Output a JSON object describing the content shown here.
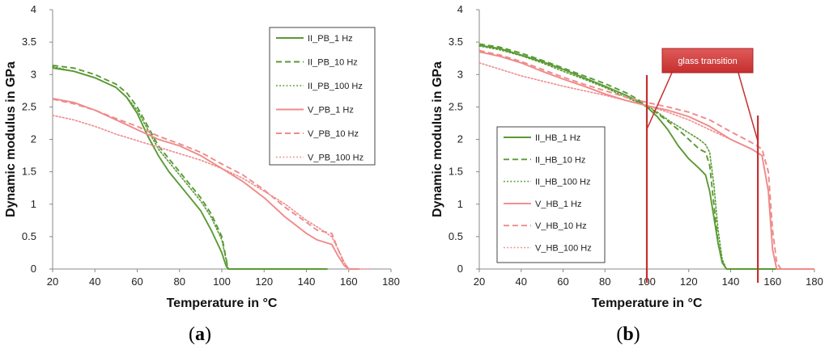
{
  "chart_data": [
    {
      "type": "line",
      "panel_label": "a",
      "xlabel": "Temperature in °C",
      "ylabel": "Dynamic modulus in GPa",
      "xlim": [
        20,
        180
      ],
      "ylim": [
        0,
        4
      ],
      "x_ticks": [
        "20",
        "40",
        "60",
        "80",
        "100",
        "120",
        "140",
        "160",
        "180"
      ],
      "y_ticks": [
        "0",
        "0.5",
        "1",
        "1.5",
        "2",
        "2.5",
        "3",
        "3.5",
        "4"
      ],
      "legend_position": "top-right",
      "series": [
        {
          "name": "II_PB_1 Hz",
          "color": "#5a9a34",
          "dash": "solid",
          "x": [
            20,
            30,
            40,
            50,
            55,
            60,
            65,
            70,
            75,
            80,
            85,
            90,
            95,
            100,
            102,
            103,
            110,
            120,
            130,
            140,
            150
          ],
          "y": [
            3.1,
            3.05,
            2.95,
            2.8,
            2.65,
            2.4,
            2.05,
            1.75,
            1.5,
            1.3,
            1.1,
            0.9,
            0.6,
            0.25,
            0.05,
            0,
            0,
            0,
            0,
            0,
            0
          ]
        },
        {
          "name": "II_PB_10 Hz",
          "color": "#5a9a34",
          "dash": "dashed",
          "x": [
            20,
            30,
            40,
            50,
            55,
            60,
            65,
            70,
            75,
            80,
            85,
            90,
            95,
            100,
            103
          ],
          "y": [
            3.14,
            3.1,
            3.0,
            2.85,
            2.72,
            2.5,
            2.2,
            1.9,
            1.7,
            1.5,
            1.3,
            1.1,
            0.85,
            0.5,
            0.0
          ]
        },
        {
          "name": "II_PB_100 Hz",
          "color": "#5a9a34",
          "dash": "dotted",
          "x": [
            20,
            30,
            40,
            50,
            55,
            60,
            65,
            70,
            75,
            80,
            85,
            90,
            95,
            100,
            103
          ],
          "y": [
            3.12,
            3.05,
            2.95,
            2.8,
            2.65,
            2.45,
            2.15,
            1.85,
            1.65,
            1.45,
            1.25,
            1.05,
            0.8,
            0.45,
            0.0
          ]
        },
        {
          "name": "V_PB_1 Hz",
          "color": "#f08a8a",
          "dash": "solid",
          "x": [
            20,
            30,
            40,
            50,
            60,
            70,
            80,
            90,
            100,
            110,
            120,
            130,
            140,
            145,
            152,
            155,
            158,
            160,
            165
          ],
          "y": [
            2.63,
            2.57,
            2.45,
            2.3,
            2.15,
            2.0,
            1.9,
            1.75,
            1.55,
            1.35,
            1.1,
            0.8,
            0.55,
            0.45,
            0.38,
            0.2,
            0.05,
            0,
            0
          ]
        },
        {
          "name": "V_PB_10 Hz",
          "color": "#f08a8a",
          "dash": "dashed",
          "x": [
            20,
            30,
            40,
            50,
            60,
            70,
            80,
            90,
            100,
            110,
            120,
            130,
            140,
            145,
            152,
            155,
            158,
            160
          ],
          "y": [
            2.62,
            2.55,
            2.45,
            2.32,
            2.2,
            2.05,
            1.93,
            1.8,
            1.62,
            1.45,
            1.22,
            0.95,
            0.72,
            0.6,
            0.55,
            0.3,
            0.08,
            0
          ]
        },
        {
          "name": "V_PB_100 Hz",
          "color": "#f08a8a",
          "dash": "dotted",
          "x": [
            20,
            30,
            40,
            50,
            60,
            70,
            80,
            90,
            100,
            110,
            120,
            130,
            140,
            145,
            152,
            155,
            158,
            160,
            165,
            170
          ],
          "y": [
            2.37,
            2.3,
            2.2,
            2.08,
            1.98,
            1.88,
            1.78,
            1.68,
            1.55,
            1.4,
            1.2,
            1.0,
            0.75,
            0.65,
            0.5,
            0.3,
            0.1,
            0,
            0,
            0
          ]
        }
      ]
    },
    {
      "type": "line",
      "panel_label": "b",
      "xlabel": "Temperature in °C",
      "ylabel": "Dynamic modulus in GPa",
      "xlim": [
        20,
        180
      ],
      "ylim": [
        0,
        4
      ],
      "x_ticks": [
        "20",
        "40",
        "60",
        "80",
        "100",
        "120",
        "140",
        "160",
        "180"
      ],
      "y_ticks": [
        "0",
        "0.5",
        "1",
        "1.5",
        "2",
        "2.5",
        "3",
        "3.5",
        "4"
      ],
      "legend_position": "bottom-left",
      "annotation": {
        "text": "glass transition",
        "marker_x": [
          100,
          153
        ]
      },
      "series": [
        {
          "name": "II_HB_1 Hz",
          "color": "#5a9a34",
          "dash": "solid",
          "x": [
            20,
            30,
            40,
            50,
            60,
            70,
            80,
            90,
            95,
            100,
            105,
            110,
            115,
            120,
            125,
            128,
            130,
            132,
            134,
            136,
            138,
            140,
            150,
            160,
            170,
            180
          ],
          "y": [
            3.45,
            3.4,
            3.3,
            3.2,
            3.08,
            2.95,
            2.82,
            2.68,
            2.6,
            2.5,
            2.35,
            2.15,
            1.9,
            1.7,
            1.55,
            1.45,
            1.2,
            0.8,
            0.4,
            0.1,
            0.0,
            0,
            0,
            0,
            0,
            0
          ]
        },
        {
          "name": "II_HB_10 Hz",
          "color": "#5a9a34",
          "dash": "dashed",
          "x": [
            20,
            30,
            40,
            50,
            60,
            70,
            80,
            90,
            95,
            100,
            105,
            110,
            115,
            120,
            125,
            128,
            130,
            132,
            134,
            136,
            138
          ],
          "y": [
            3.47,
            3.42,
            3.33,
            3.22,
            3.1,
            2.98,
            2.86,
            2.72,
            2.63,
            2.52,
            2.4,
            2.28,
            2.15,
            2.0,
            1.85,
            1.8,
            1.6,
            1.0,
            0.4,
            0.1,
            0.0
          ]
        },
        {
          "name": "II_HB_100 Hz",
          "color": "#5a9a34",
          "dash": "dotted",
          "x": [
            20,
            30,
            40,
            50,
            60,
            70,
            80,
            90,
            95,
            100,
            105,
            110,
            115,
            120,
            125,
            128,
            130,
            132,
            134,
            136,
            138
          ],
          "y": [
            3.44,
            3.38,
            3.29,
            3.18,
            3.05,
            2.93,
            2.8,
            2.65,
            2.58,
            2.52,
            2.42,
            2.3,
            2.2,
            2.1,
            2.0,
            1.92,
            1.8,
            1.3,
            0.6,
            0.15,
            0.0
          ]
        },
        {
          "name": "V_HB_1 Hz",
          "color": "#f08a8a",
          "dash": "solid",
          "x": [
            20,
            30,
            40,
            50,
            60,
            70,
            80,
            90,
            100,
            110,
            120,
            130,
            140,
            150,
            155,
            158,
            160,
            162,
            170,
            180
          ],
          "y": [
            3.35,
            3.28,
            3.18,
            3.05,
            2.93,
            2.82,
            2.7,
            2.6,
            2.52,
            2.45,
            2.35,
            2.2,
            2.0,
            1.85,
            1.75,
            1.2,
            0.3,
            0,
            0,
            0
          ]
        },
        {
          "name": "V_HB_10 Hz",
          "color": "#f08a8a",
          "dash": "dashed",
          "x": [
            20,
            30,
            40,
            50,
            60,
            70,
            80,
            90,
            100,
            110,
            120,
            130,
            140,
            150,
            155,
            158,
            160,
            162,
            164
          ],
          "y": [
            3.37,
            3.3,
            3.2,
            3.08,
            2.96,
            2.85,
            2.75,
            2.65,
            2.57,
            2.5,
            2.42,
            2.3,
            2.12,
            1.95,
            1.85,
            1.5,
            0.6,
            0.1,
            0
          ]
        },
        {
          "name": "V_HB_100 Hz",
          "color": "#f08a8a",
          "dash": "dotted",
          "x": [
            20,
            30,
            40,
            50,
            60,
            70,
            80,
            90,
            100,
            110,
            120,
            130,
            140,
            150,
            155,
            158,
            160,
            162
          ],
          "y": [
            3.18,
            3.08,
            2.98,
            2.9,
            2.82,
            2.75,
            2.68,
            2.6,
            2.52,
            2.42,
            2.3,
            2.15,
            2.0,
            1.85,
            1.75,
            1.2,
            0.3,
            0
          ]
        }
      ]
    }
  ]
}
